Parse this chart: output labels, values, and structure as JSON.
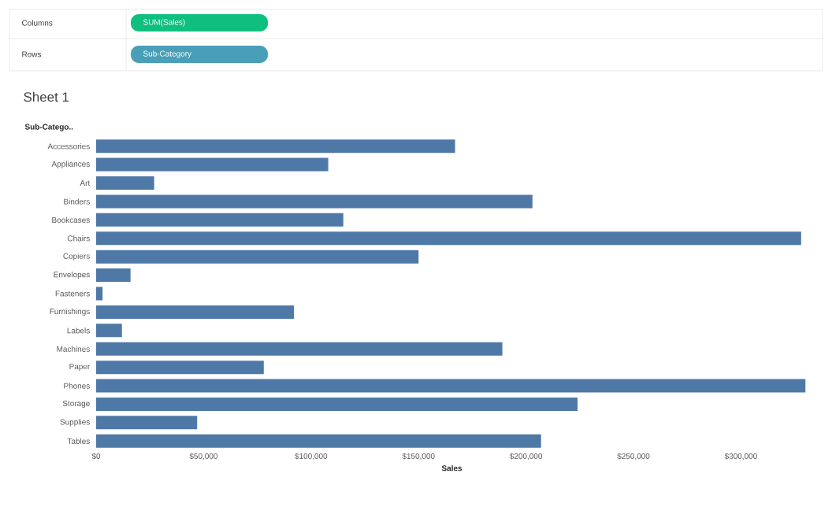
{
  "chart_data": {
    "type": "bar",
    "orientation": "horizontal",
    "title": "Sheet 1",
    "xlabel": "Sales",
    "ylabel": "Sub-Catego..",
    "annotations": [
      "Columns",
      "SUM(Sales)",
      "Rows",
      "Sub-Category"
    ],
    "categories": [
      "Accessories",
      "Appliances",
      "Art",
      "Binders",
      "Bookcases",
      "Chairs",
      "Copiers",
      "Envelopes",
      "Fasteners",
      "Furnishings",
      "Labels",
      "Machines",
      "Paper",
      "Phones",
      "Storage",
      "Supplies",
      "Tables"
    ],
    "values": [
      167000,
      108000,
      27000,
      203000,
      115000,
      328000,
      150000,
      16000,
      3000,
      92000,
      12000,
      189000,
      78000,
      330000,
      224000,
      47000,
      207000
    ],
    "color": "#4e79a7",
    "xlim": [
      0,
      331000
    ],
    "xticks": [
      {
        "value": 0,
        "label": "$0"
      },
      {
        "value": 50000,
        "label": "$50,000"
      },
      {
        "value": 100000,
        "label": "$100,000"
      },
      {
        "value": 150000,
        "label": "$150,000"
      },
      {
        "value": 200000,
        "label": "$200,000"
      },
      {
        "value": 250000,
        "label": "$250,000"
      },
      {
        "value": 300000,
        "label": "$300,000"
      }
    ],
    "grid": false
  }
}
